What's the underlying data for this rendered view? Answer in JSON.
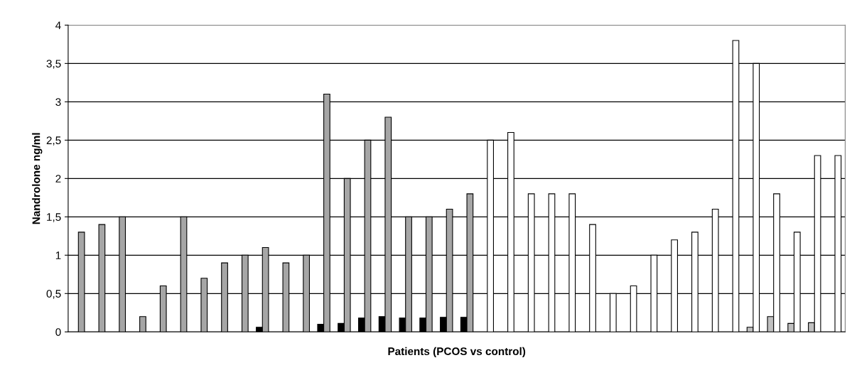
{
  "chart_data": {
    "type": "bar",
    "xlabel": "Patients (PCOS vs control)",
    "ylabel": "Nandrolone ng/ml",
    "categories": [
      null,
      null,
      null,
      null,
      null,
      null,
      null,
      null,
      null,
      null,
      null,
      null,
      null,
      null,
      null,
      null,
      null,
      null,
      null,
      null,
      null,
      null,
      null,
      null,
      null,
      null,
      null,
      null,
      null,
      null,
      null,
      null,
      null,
      null,
      null,
      null,
      null,
      null
    ],
    "series": [
      {
        "colors": [
          "#000000",
          "#000000",
          "#000000",
          "#000000",
          "#000000",
          "#000000",
          "#000000",
          "#000000",
          "#000000",
          "#000000",
          "#000000",
          "#000000",
          "#000000",
          "#000000",
          "#000000",
          "#000000",
          "#000000",
          "#000000",
          "#000000",
          "#000000",
          "#c0c0c0",
          "#c0c0c0",
          "#c0c0c0",
          "#c0c0c0",
          "#c0c0c0",
          "#c0c0c0",
          "#c0c0c0",
          "#c0c0c0",
          "#c0c0c0",
          "#c0c0c0",
          "#c0c0c0",
          "#c0c0c0",
          "#c0c0c0",
          "#c0c0c0",
          "#c0c0c0",
          "#c0c0c0",
          "#c0c0c0",
          "#c0c0c0"
        ],
        "values": [
          null,
          null,
          null,
          null,
          null,
          null,
          null,
          null,
          null,
          0.06,
          null,
          null,
          0.1,
          0.11,
          0.18,
          0.2,
          0.18,
          0.18,
          0.19,
          0.19,
          null,
          null,
          null,
          null,
          null,
          null,
          null,
          null,
          null,
          null,
          null,
          null,
          null,
          0.06,
          0.2,
          0.11,
          0.12,
          null
        ]
      },
      {
        "colors": [
          "#a6a6a6",
          "#a6a6a6",
          "#a6a6a6",
          "#a6a6a6",
          "#a6a6a6",
          "#a6a6a6",
          "#a6a6a6",
          "#a6a6a6",
          "#a6a6a6",
          "#a6a6a6",
          "#a6a6a6",
          "#a6a6a6",
          "#a6a6a6",
          "#a6a6a6",
          "#a6a6a6",
          "#a6a6a6",
          "#a6a6a6",
          "#a6a6a6",
          "#a6a6a6",
          "#a6a6a6",
          "#ffffff",
          "#ffffff",
          "#ffffff",
          "#ffffff",
          "#ffffff",
          "#ffffff",
          "#ffffff",
          "#ffffff",
          "#ffffff",
          "#ffffff",
          "#ffffff",
          "#ffffff",
          "#ffffff",
          "#ffffff",
          "#ffffff",
          "#ffffff",
          "#ffffff",
          "#ffffff"
        ],
        "values": [
          1.3,
          1.4,
          1.5,
          0.2,
          0.6,
          1.5,
          0.7,
          0.9,
          1.0,
          1.1,
          0.9,
          1.0,
          3.1,
          2.0,
          2.5,
          2.8,
          1.5,
          1.5,
          1.6,
          1.8,
          2.5,
          2.6,
          1.8,
          1.8,
          1.8,
          1.4,
          0.5,
          0.6,
          1.0,
          1.2,
          1.3,
          1.6,
          3.8,
          3.5,
          1.8,
          1.3,
          2.3,
          2.3
        ]
      }
    ],
    "ylim": [
      0,
      4
    ],
    "yticks": [
      0,
      {
        "value": 0.5,
        "label": "0,5"
      },
      1,
      {
        "value": 1.5,
        "label": "1,5"
      },
      2,
      {
        "value": 2.5,
        "label": "2,5"
      },
      3,
      {
        "value": 3.5,
        "label": "3,5"
      },
      4
    ],
    "grid": "y",
    "legend": false,
    "tick_labels": "y"
  }
}
